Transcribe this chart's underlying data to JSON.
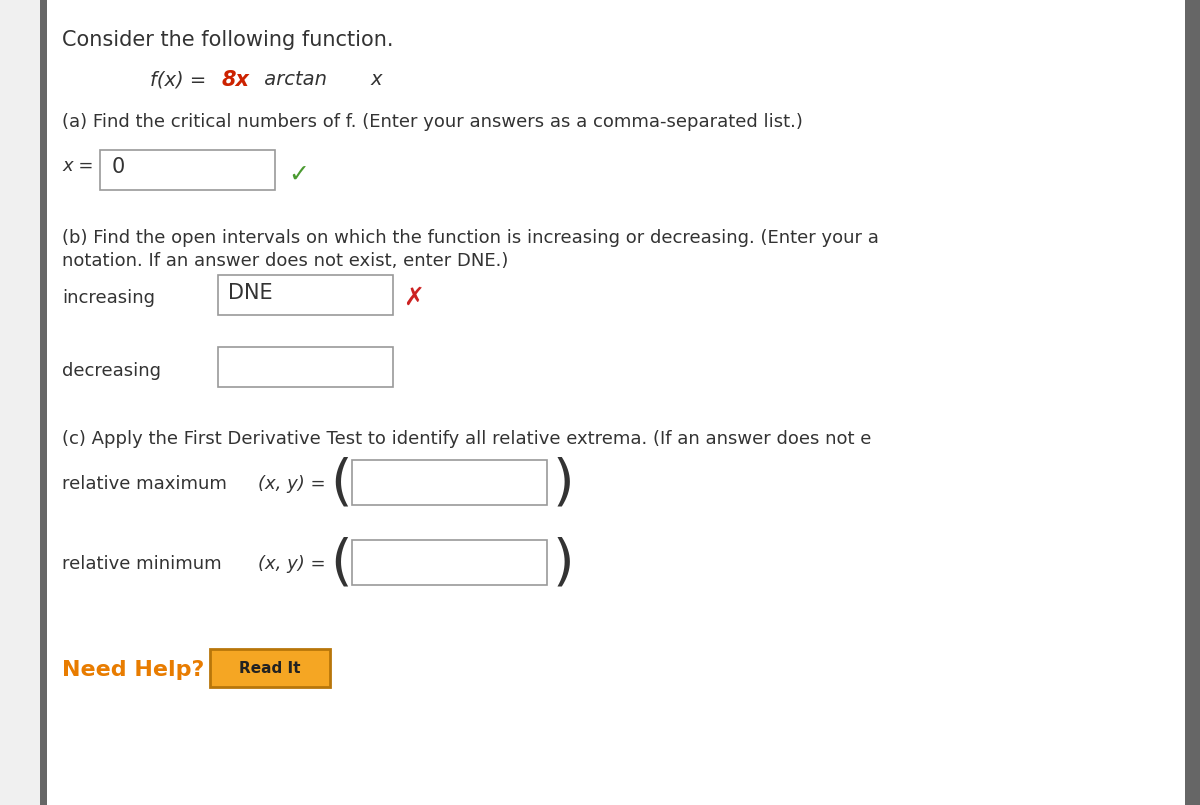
{
  "bg_color": "#f0f0f0",
  "panel_color": "#ffffff",
  "title_text": "Consider the following function.",
  "part_a_text": "(a) Find the critical numbers of f. (Enter your answers as a comma-separated list.)",
  "part_a_value": "0",
  "part_b_text1": "(b) Find the open intervals on which the function is increasing or decreasing. (Enter your a",
  "part_b_text2": "notation. If an answer does not exist, enter DNE.)",
  "increasing_label": "increasing",
  "increasing_value": "DNE",
  "decreasing_label": "decreasing",
  "part_c_text": "(c) Apply the First Derivative Test to identify all relative extrema. (If an answer does not e",
  "rel_max_label": "relative maximum",
  "rel_min_label": "relative minimum",
  "xy_label": "(x, y) = ",
  "need_help_text": "Need Help?",
  "read_it_text": "Read It",
  "need_help_color": "#e87c00",
  "read_it_bg": "#f5a623",
  "read_it_border": "#b8760a",
  "green_check_color": "#4a9a30",
  "red_x_color": "#cc2222",
  "text_color": "#333333",
  "orange_color": "#cc2200",
  "left_bar_color": "#666666",
  "box_border_color": "#999999",
  "font_family": "DejaVu Sans",
  "fs_title": 15,
  "fs_body": 13,
  "fs_func": 14,
  "fs_need_help": 16
}
